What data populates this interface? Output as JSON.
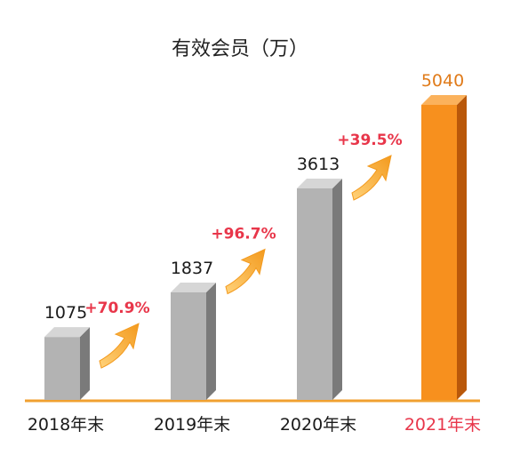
{
  "chart_data": {
    "type": "bar",
    "title": "有效会员（万）",
    "categories": [
      "2018年末",
      "2019年末",
      "2020年末",
      "2021年末"
    ],
    "values": [
      1075,
      1837,
      3613,
      5040
    ],
    "value_labels": [
      "1075",
      "1837",
      "3613",
      "5040"
    ],
    "growth_labels": [
      "+70.9%",
      "+96.7%",
      "+39.5%"
    ],
    "highlight_index": 3,
    "ylim": [
      0,
      5040
    ],
    "grid": false,
    "legend": "none",
    "colors": {
      "bar_front": "#b3b3b3",
      "bar_side": "#7a7a7a",
      "bar_top": "#d6d6d6",
      "highlight_front": "#f7901e",
      "highlight_side": "#b9580a",
      "highlight_top": "#fbb25c",
      "baseline": "#f0a030",
      "arrow": "#f39a1e",
      "growth_text": "#e8364a",
      "highlight_value_text": "#e07b1a",
      "highlight_tick_text": "#e8364a"
    }
  }
}
